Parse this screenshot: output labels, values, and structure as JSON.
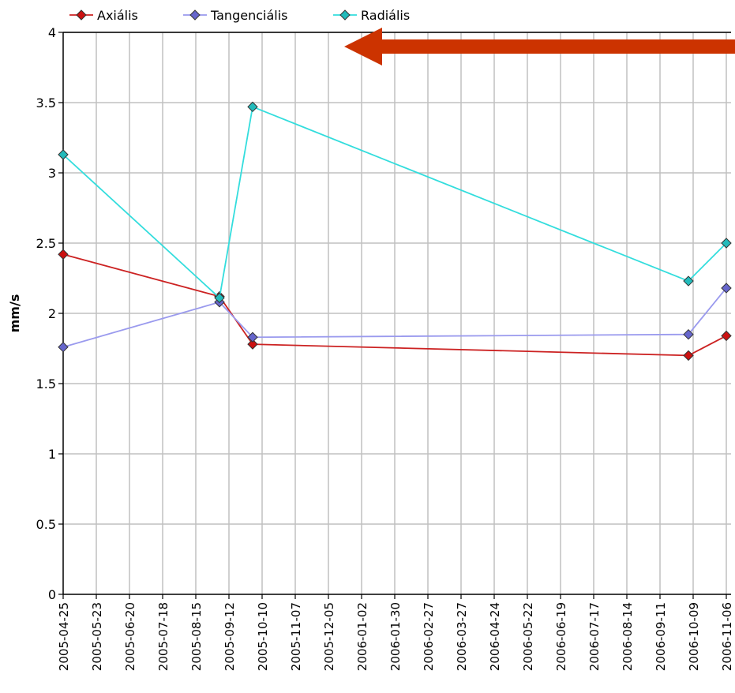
{
  "chart_data": {
    "type": "line",
    "ylabel": "mm/s",
    "xlabel": "",
    "title": "",
    "ylim": [
      0,
      4
    ],
    "y_ticks": [
      "0",
      "0.5",
      "1",
      "1.5",
      "2",
      "2.5",
      "3",
      "3.5",
      "4"
    ],
    "x_ticks": [
      "2005-04-25",
      "2005-05-23",
      "2005-06-20",
      "2005-07-18",
      "2005-08-15",
      "2005-09-12",
      "2005-10-10",
      "2005-11-07",
      "2005-12-05",
      "2006-01-02",
      "2006-01-30",
      "2006-02-27",
      "2006-03-27",
      "2006-04-24",
      "2006-05-22",
      "2006-06-19",
      "2006-07-17",
      "2006-08-14",
      "2006-09-11",
      "2006-10-09",
      "2006-11-06"
    ],
    "grid": true,
    "legend_position": "top-left",
    "series": [
      {
        "name": "Axiális",
        "color": "#cc2222",
        "marker_color": "#cc1111",
        "points": [
          {
            "x": "2005-04-25",
            "y": 2.42
          },
          {
            "x": "2005-09-04",
            "y": 2.12
          },
          {
            "x": "2005-10-02",
            "y": 1.78
          },
          {
            "x": "2006-10-05",
            "y": 1.7
          },
          {
            "x": "2006-11-06",
            "y": 1.84
          }
        ]
      },
      {
        "name": "Tangenciális",
        "color": "#9a9aee",
        "marker_color": "#6666cc",
        "points": [
          {
            "x": "2005-04-25",
            "y": 1.76
          },
          {
            "x": "2005-09-04",
            "y": 2.08
          },
          {
            "x": "2005-10-02",
            "y": 1.83
          },
          {
            "x": "2006-10-05",
            "y": 1.85
          },
          {
            "x": "2006-11-06",
            "y": 2.18
          }
        ]
      },
      {
        "name": "Radiális",
        "color": "#33dddd",
        "marker_color": "#22bbbb",
        "points": [
          {
            "x": "2005-04-25",
            "y": 3.13
          },
          {
            "x": "2005-09-04",
            "y": 2.11
          },
          {
            "x": "2005-10-02",
            "y": 3.47
          },
          {
            "x": "2006-10-05",
            "y": 2.23
          },
          {
            "x": "2006-11-06",
            "y": 2.5
          }
        ]
      }
    ],
    "annotation_arrow": {
      "color": "#cc3300",
      "direction": "left"
    }
  }
}
